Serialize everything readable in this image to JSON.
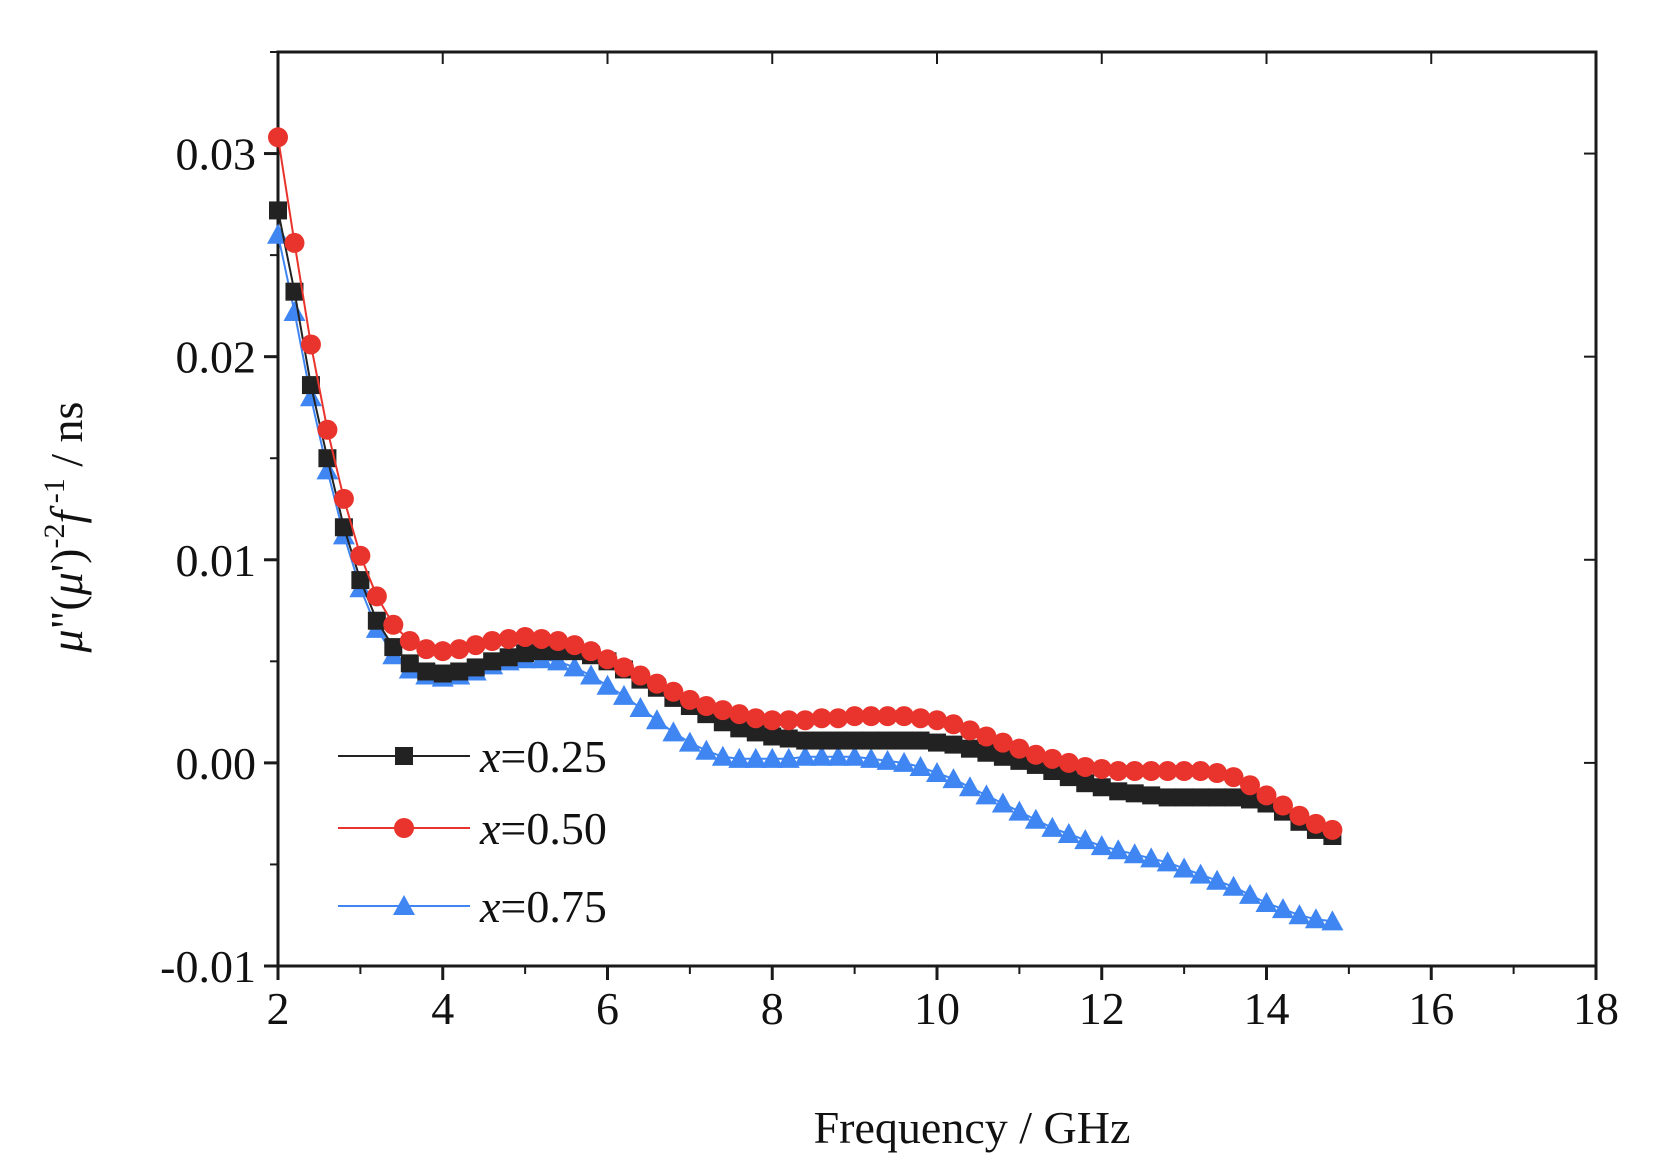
{
  "chart_data": {
    "type": "line",
    "title": "",
    "xlabel": "Frequency / GHz",
    "ylabel_parts": [
      "μ",
      "\"(",
      "μ",
      "')",
      "-2",
      "f",
      " -1",
      " / ns"
    ],
    "xlim": [
      2,
      18
    ],
    "ylim": [
      -0.01,
      0.035
    ],
    "xticks": [
      "2",
      "4",
      "6",
      "8",
      "10",
      "12",
      "14",
      "16",
      "18"
    ],
    "yticks": [
      "-0.01",
      "0.00",
      "0.01",
      "0.02",
      "0.03"
    ],
    "grid": false,
    "legend_position": "bottom-left",
    "legend_prefix": "x",
    "series": [
      {
        "name": "=0.25",
        "color": "#222222",
        "marker": "square",
        "points": [
          [
            2.0,
            0.0272
          ],
          [
            2.2,
            0.0232
          ],
          [
            2.4,
            0.0186
          ],
          [
            2.6,
            0.015
          ],
          [
            2.8,
            0.0116
          ],
          [
            3.0,
            0.009
          ],
          [
            3.2,
            0.007
          ],
          [
            3.4,
            0.0057
          ],
          [
            3.6,
            0.0049
          ],
          [
            3.8,
            0.0045
          ],
          [
            4.0,
            0.0044
          ],
          [
            4.2,
            0.0045
          ],
          [
            4.4,
            0.0047
          ],
          [
            4.6,
            0.005
          ],
          [
            4.8,
            0.0052
          ],
          [
            5.0,
            0.0054
          ],
          [
            5.2,
            0.0055
          ],
          [
            5.4,
            0.0055
          ],
          [
            5.6,
            0.0055
          ],
          [
            5.8,
            0.0053
          ],
          [
            6.0,
            0.005
          ],
          [
            6.2,
            0.0046
          ],
          [
            6.4,
            0.0041
          ],
          [
            6.6,
            0.0037
          ],
          [
            6.8,
            0.0032
          ],
          [
            7.0,
            0.0028
          ],
          [
            7.2,
            0.0024
          ],
          [
            7.4,
            0.002
          ],
          [
            7.6,
            0.0017
          ],
          [
            7.8,
            0.0015
          ],
          [
            8.0,
            0.0013
          ],
          [
            8.2,
            0.0012
          ],
          [
            8.4,
            0.0011
          ],
          [
            8.6,
            0.0011
          ],
          [
            8.8,
            0.0011
          ],
          [
            9.0,
            0.0011
          ],
          [
            9.2,
            0.0011
          ],
          [
            9.4,
            0.0011
          ],
          [
            9.6,
            0.0011
          ],
          [
            9.8,
            0.0011
          ],
          [
            10.0,
            0.001
          ],
          [
            10.2,
            0.0009
          ],
          [
            10.4,
            0.0007
          ],
          [
            10.6,
            0.0005
          ],
          [
            10.8,
            0.0003
          ],
          [
            11.0,
            0.0001
          ],
          [
            11.2,
            -0.0001
          ],
          [
            11.4,
            -0.0004
          ],
          [
            11.6,
            -0.0007
          ],
          [
            11.8,
            -0.001
          ],
          [
            12.0,
            -0.0012
          ],
          [
            12.2,
            -0.0014
          ],
          [
            12.4,
            -0.0015
          ],
          [
            12.6,
            -0.0016
          ],
          [
            12.8,
            -0.0017
          ],
          [
            13.0,
            -0.0017
          ],
          [
            13.2,
            -0.0017
          ],
          [
            13.4,
            -0.0017
          ],
          [
            13.6,
            -0.0017
          ],
          [
            13.8,
            -0.0018
          ],
          [
            14.0,
            -0.002
          ],
          [
            14.2,
            -0.0024
          ],
          [
            14.4,
            -0.0029
          ],
          [
            14.6,
            -0.0033
          ],
          [
            14.8,
            -0.0036
          ]
        ]
      },
      {
        "name": "=0.50",
        "color": "#e8342c",
        "marker": "circle",
        "points": [
          [
            2.0,
            0.0308
          ],
          [
            2.2,
            0.0256
          ],
          [
            2.4,
            0.0206
          ],
          [
            2.6,
            0.0164
          ],
          [
            2.8,
            0.013
          ],
          [
            3.0,
            0.0102
          ],
          [
            3.2,
            0.0082
          ],
          [
            3.4,
            0.0068
          ],
          [
            3.6,
            0.006
          ],
          [
            3.8,
            0.0056
          ],
          [
            4.0,
            0.0055
          ],
          [
            4.2,
            0.0056
          ],
          [
            4.4,
            0.0058
          ],
          [
            4.6,
            0.006
          ],
          [
            4.8,
            0.0061
          ],
          [
            5.0,
            0.0062
          ],
          [
            5.2,
            0.0061
          ],
          [
            5.4,
            0.006
          ],
          [
            5.6,
            0.0058
          ],
          [
            5.8,
            0.0055
          ],
          [
            6.0,
            0.0051
          ],
          [
            6.2,
            0.0047
          ],
          [
            6.4,
            0.0043
          ],
          [
            6.6,
            0.0039
          ],
          [
            6.8,
            0.0035
          ],
          [
            7.0,
            0.0031
          ],
          [
            7.2,
            0.0028
          ],
          [
            7.4,
            0.0026
          ],
          [
            7.6,
            0.0024
          ],
          [
            7.8,
            0.0022
          ],
          [
            8.0,
            0.0021
          ],
          [
            8.2,
            0.0021
          ],
          [
            8.4,
            0.0021
          ],
          [
            8.6,
            0.0022
          ],
          [
            8.8,
            0.0022
          ],
          [
            9.0,
            0.0023
          ],
          [
            9.2,
            0.0023
          ],
          [
            9.4,
            0.0023
          ],
          [
            9.6,
            0.0023
          ],
          [
            9.8,
            0.0022
          ],
          [
            10.0,
            0.0021
          ],
          [
            10.2,
            0.0019
          ],
          [
            10.4,
            0.0016
          ],
          [
            10.6,
            0.0013
          ],
          [
            10.8,
            0.001
          ],
          [
            11.0,
            0.0007
          ],
          [
            11.2,
            0.0004
          ],
          [
            11.4,
            0.0002
          ],
          [
            11.6,
            0.0
          ],
          [
            11.8,
            -0.0002
          ],
          [
            12.0,
            -0.0003
          ],
          [
            12.2,
            -0.0004
          ],
          [
            12.4,
            -0.0004
          ],
          [
            12.6,
            -0.0004
          ],
          [
            12.8,
            -0.0004
          ],
          [
            13.0,
            -0.0004
          ],
          [
            13.2,
            -0.0004
          ],
          [
            13.4,
            -0.0005
          ],
          [
            13.6,
            -0.0007
          ],
          [
            13.8,
            -0.0011
          ],
          [
            14.0,
            -0.0016
          ],
          [
            14.2,
            -0.0021
          ],
          [
            14.4,
            -0.0026
          ],
          [
            14.6,
            -0.003
          ],
          [
            14.8,
            -0.0033
          ]
        ]
      },
      {
        "name": "=0.75",
        "color": "#3f86f3",
        "marker": "triangle",
        "points": [
          [
            2.0,
            0.026
          ],
          [
            2.2,
            0.0222
          ],
          [
            2.4,
            0.018
          ],
          [
            2.6,
            0.0144
          ],
          [
            2.8,
            0.0112
          ],
          [
            3.0,
            0.0086
          ],
          [
            3.2,
            0.0066
          ],
          [
            3.4,
            0.0053
          ],
          [
            3.6,
            0.0046
          ],
          [
            3.8,
            0.0043
          ],
          [
            4.0,
            0.0042
          ],
          [
            4.2,
            0.0043
          ],
          [
            4.4,
            0.0045
          ],
          [
            4.6,
            0.0048
          ],
          [
            4.8,
            0.005
          ],
          [
            5.0,
            0.0051
          ],
          [
            5.2,
            0.0051
          ],
          [
            5.4,
            0.005
          ],
          [
            5.6,
            0.0047
          ],
          [
            5.8,
            0.0043
          ],
          [
            6.0,
            0.0038
          ],
          [
            6.2,
            0.0033
          ],
          [
            6.4,
            0.0027
          ],
          [
            6.6,
            0.0021
          ],
          [
            6.8,
            0.0015
          ],
          [
            7.0,
            0.001
          ],
          [
            7.2,
            0.0006
          ],
          [
            7.4,
            0.0003
          ],
          [
            7.6,
            0.0002
          ],
          [
            7.8,
            0.0002
          ],
          [
            8.0,
            0.0002
          ],
          [
            8.2,
            0.0002
          ],
          [
            8.4,
            0.0003
          ],
          [
            8.6,
            0.0003
          ],
          [
            8.8,
            0.0003
          ],
          [
            9.0,
            0.0003
          ],
          [
            9.2,
            0.0002
          ],
          [
            9.4,
            0.0001
          ],
          [
            9.6,
            0.0
          ],
          [
            9.8,
            -0.0002
          ],
          [
            10.0,
            -0.0005
          ],
          [
            10.2,
            -0.0008
          ],
          [
            10.4,
            -0.0012
          ],
          [
            10.6,
            -0.0016
          ],
          [
            10.8,
            -0.002
          ],
          [
            11.0,
            -0.0024
          ],
          [
            11.2,
            -0.0028
          ],
          [
            11.4,
            -0.0032
          ],
          [
            11.6,
            -0.0035
          ],
          [
            11.8,
            -0.0038
          ],
          [
            12.0,
            -0.0041
          ],
          [
            12.2,
            -0.0043
          ],
          [
            12.4,
            -0.0045
          ],
          [
            12.6,
            -0.0047
          ],
          [
            12.8,
            -0.0049
          ],
          [
            13.0,
            -0.0052
          ],
          [
            13.2,
            -0.0055
          ],
          [
            13.4,
            -0.0058
          ],
          [
            13.6,
            -0.0061
          ],
          [
            13.8,
            -0.0065
          ],
          [
            14.0,
            -0.0069
          ],
          [
            14.2,
            -0.0072
          ],
          [
            14.4,
            -0.0075
          ],
          [
            14.6,
            -0.0077
          ],
          [
            14.8,
            -0.0078
          ]
        ]
      }
    ]
  }
}
